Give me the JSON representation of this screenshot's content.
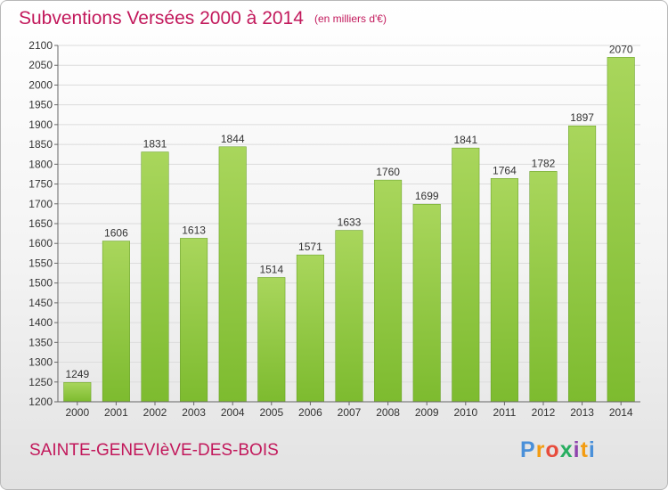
{
  "chart_data": {
    "type": "bar",
    "title": "Subventions Versées 2000 à 2014",
    "subtitle": "(en milliers d'€)",
    "categories": [
      "2000",
      "2001",
      "2002",
      "2003",
      "2004",
      "2005",
      "2006",
      "2007",
      "2008",
      "2009",
      "2010",
      "2011",
      "2012",
      "2013",
      "2014"
    ],
    "values": [
      1249,
      1606,
      1831,
      1613,
      1844,
      1514,
      1571,
      1633,
      1760,
      1699,
      1841,
      1764,
      1782,
      1897,
      2070
    ],
    "ylim": [
      1200,
      2100
    ],
    "yticks": [
      1200,
      1250,
      1300,
      1350,
      1400,
      1450,
      1500,
      1550,
      1600,
      1650,
      1700,
      1750,
      1800,
      1850,
      1900,
      1950,
      2000,
      2050,
      2100
    ],
    "grid": true,
    "bar_color": "#7dbb2f",
    "bar_color_light": "#a9d65c"
  },
  "footer": {
    "place": "SAINTE-GENEVIèVE-DES-BOIS",
    "logo_letters": [
      "P",
      "r",
      "o",
      "x",
      "i",
      "t",
      "i"
    ],
    "logo_colors": [
      "#4a90d9",
      "#f39c12",
      "#e74c3c",
      "#27ae60",
      "#8e44ad",
      "#f39c12",
      "#4a90d9"
    ]
  }
}
